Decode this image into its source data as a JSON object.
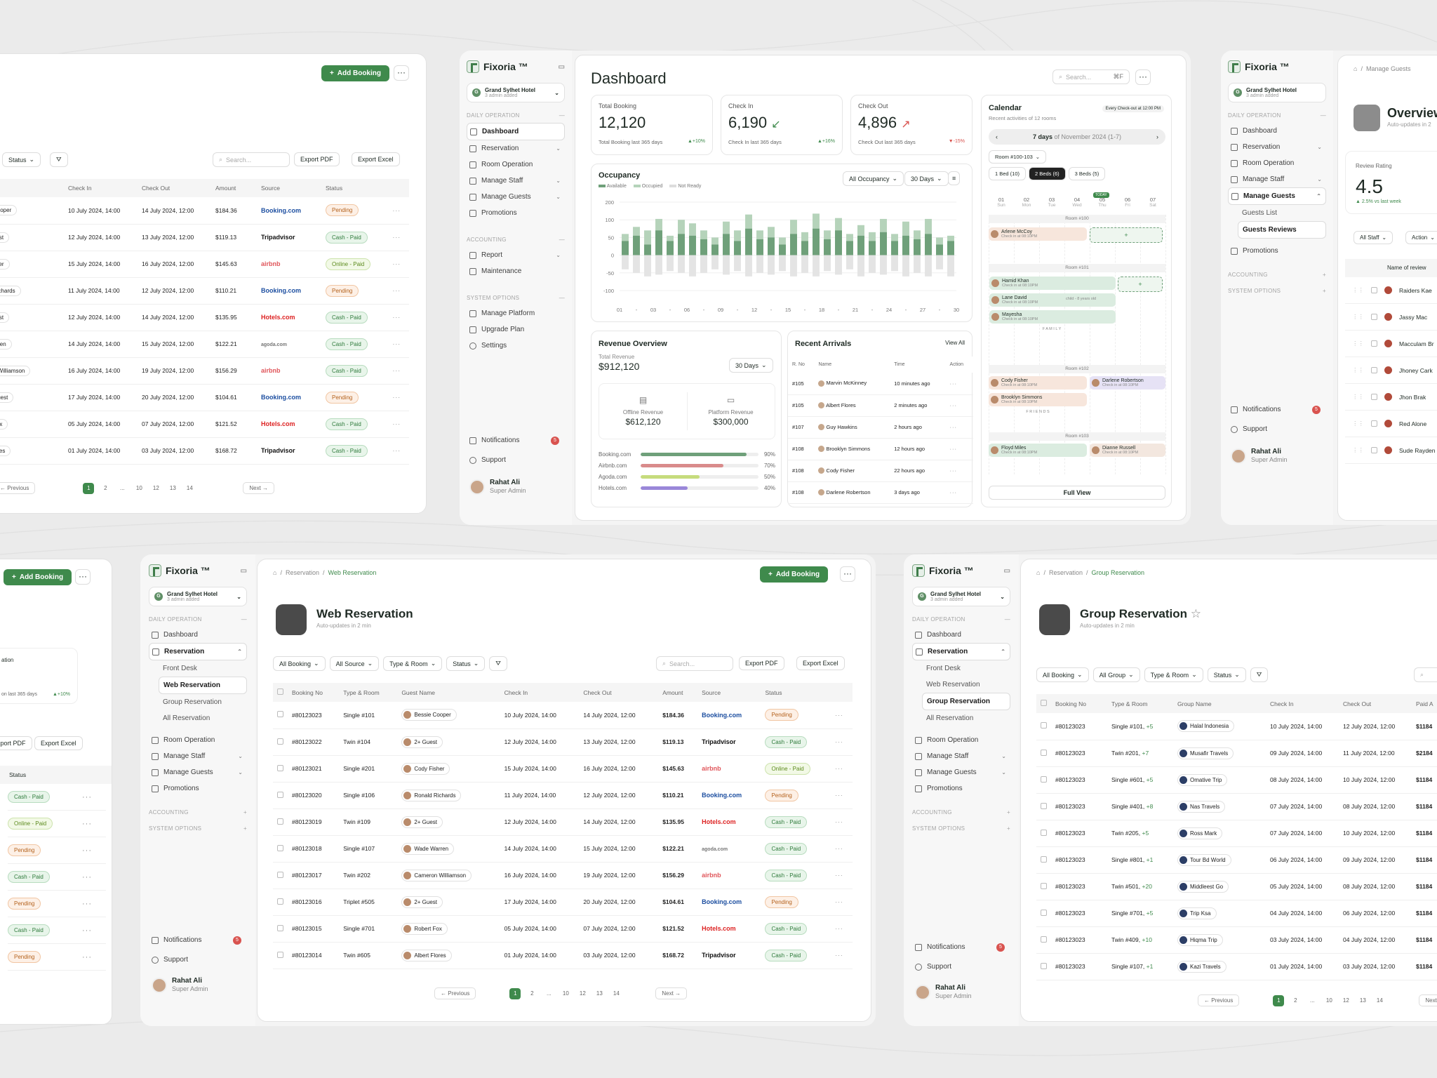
{
  "brand": "Fixoria ™",
  "hotel": {
    "name": "Grand Sylhet Hotel",
    "sub": "3 admin added",
    "initial": "G"
  },
  "sidebar": {
    "sec_daily": "DAILY OPERATION",
    "sec_acc": "ACCOUNTING",
    "sec_sys": "SYSTEM OPTIONS",
    "dashboard": "Dashboard",
    "reservation": "Reservation",
    "room_op": "Room Operation",
    "staff": "Manage Staff",
    "guests": "Manage Guests",
    "promotions": "Promotions",
    "report": "Report",
    "maintenance": "Maintenance",
    "platform": "Manage Platform",
    "upgrade": "Upgrade Plan",
    "settings": "Settings",
    "front_desk": "Front Desk",
    "web_res": "Web Reservation",
    "group_res": "Group Reservation",
    "all_res": "All Reservation",
    "guests_list": "Guests List",
    "guests_reviews": "Guests Reviews",
    "notifications": "Notifications",
    "notif_count": "5",
    "support": "Support"
  },
  "user": {
    "name": "Rahat Ali",
    "role": "Super Admin"
  },
  "common": {
    "add_booking": "Add Booking",
    "export_pdf": "Export PDF",
    "export_excel": "Export Excel",
    "search": "Search...",
    "status": "Status",
    "previous": "Previous",
    "next": "Next",
    "dots": "···"
  },
  "dashboard": {
    "title": "Dashboard",
    "search_kbd": "⌘F",
    "total": {
      "label": "Total Booking",
      "value": "12,120",
      "foot": "Total Booking last 365 days",
      "delta": "+10%"
    },
    "checkin": {
      "label": "Check In",
      "value": "6,190",
      "foot": "Check In last 365 days",
      "delta": "+16%"
    },
    "checkout": {
      "label": "Check Out",
      "value": "4,896",
      "foot": "Check Out last 365 days",
      "delta": "-15%"
    },
    "occupancy": {
      "title": "Occupancy",
      "filter1": "All Occupancy",
      "filter2": "30 Days",
      "legend": [
        "Available",
        "Occupied",
        "Not Ready"
      ]
    },
    "revenue": {
      "title": "Revenue Overview",
      "total_label": "Total Revenue",
      "total": "$912,120",
      "range": "30 Days",
      "offline_label": "Offline Revenue",
      "offline": "$612,120",
      "platform_label": "Platform Revenue",
      "platform": "$300,000",
      "sources": [
        {
          "name": "Booking.com",
          "pct": "90%",
          "v": 0.9,
          "c": "#6fa07a"
        },
        {
          "name": "Airbnb.com",
          "pct": "70%",
          "v": 0.7,
          "c": "#d98b8b"
        },
        {
          "name": "Agoda.com",
          "pct": "50%",
          "v": 0.5,
          "c": "#c6dc7d"
        },
        {
          "name": "Hotels.com",
          "pct": "40%",
          "v": 0.4,
          "c": "#9a87d9"
        }
      ]
    },
    "arrivals": {
      "title": "Recent Arrivals",
      "view_all": "View All",
      "cols": [
        "R. No",
        "Name",
        "Time",
        "Action"
      ],
      "rows": [
        {
          "r": "#105",
          "n": "Marvin McKinney",
          "t": "10 minutes ago"
        },
        {
          "r": "#105",
          "n": "Albert Flores",
          "t": "2 minutes ago"
        },
        {
          "r": "#107",
          "n": "Guy Hawkins",
          "t": "2 hours ago"
        },
        {
          "r": "#108",
          "n": "Brooklyn Simmons",
          "t": "12 hours ago"
        },
        {
          "r": "#108",
          "n": "Cody Fisher",
          "t": "22 hours ago"
        },
        {
          "r": "#108",
          "n": "Darlene Robertson",
          "t": "3 days ago"
        }
      ]
    },
    "calendar": {
      "title": "Calendar",
      "sub": "Recent activities of 12 rooms",
      "note": "Every Check-out at 12:00 PM",
      "range_bold": "7 days",
      "range_rest": "of November 2024 (1-7)",
      "room_filter": "Room #100-103",
      "tabs": [
        "1 Bed (10)",
        "2 Beds (6)",
        "3 Beds (5)"
      ],
      "today": "TODAY",
      "days": [
        {
          "n": "01",
          "d": "Sun"
        },
        {
          "n": "02",
          "d": "Mon"
        },
        {
          "n": "03",
          "d": "Tue"
        },
        {
          "n": "04",
          "d": "Wed"
        },
        {
          "n": "05",
          "d": "Thu"
        },
        {
          "n": "06",
          "d": "Fri"
        },
        {
          "n": "07",
          "d": "Sat"
        }
      ],
      "rooms": [
        "Room #100",
        "Room #101",
        "Room #102",
        "Room #103"
      ],
      "events": [
        "Arlene McCoy",
        "Hamid Khan",
        "Lane David",
        "Mayesha",
        "Cody Fisher",
        "Brooklyn Simmons",
        "Darlene Robertson",
        "Floyd Miles",
        "Dianne Russell"
      ],
      "ev_sub": "Check in at 08:10PM, Out at 11:30 PM",
      "ev_sub2": "Check in at 08:10PM",
      "child": "child - 8 years old",
      "family": "F A M I L Y",
      "friends": "F R I E N D S",
      "full_view": "Full View"
    }
  },
  "chart_data": {
    "type": "bar",
    "title": "Occupancy",
    "categories": [
      "01",
      "02",
      "03",
      "04",
      "05",
      "06",
      "07",
      "08",
      "09",
      "10",
      "11",
      "12",
      "13",
      "14",
      "15",
      "16",
      "17",
      "18",
      "19",
      "20",
      "21",
      "22",
      "23",
      "24",
      "25",
      "26",
      "27",
      "28",
      "29",
      "30"
    ],
    "x_tick_labels": [
      "01",
      "-",
      "03",
      "-",
      "06",
      "-",
      "09",
      "-",
      "12",
      "-",
      "15",
      "-",
      "18",
      "-",
      "21",
      "-",
      "24",
      "-",
      "27",
      "-",
      "30"
    ],
    "ylim": [
      -100,
      200
    ],
    "yticks": [
      200,
      100,
      50,
      0,
      -50,
      -100
    ],
    "series": [
      {
        "name": "Occupied",
        "values": [
          40,
          55,
          30,
          70,
          40,
          60,
          55,
          45,
          30,
          60,
          40,
          75,
          45,
          50,
          30,
          60,
          40,
          75,
          45,
          70,
          40,
          55,
          40,
          65,
          40,
          55,
          45,
          60,
          30,
          40
        ]
      },
      {
        "name": "Available",
        "values": [
          60,
          80,
          70,
          105,
          55,
          100,
          90,
          70,
          50,
          95,
          70,
          130,
          70,
          80,
          50,
          100,
          65,
          135,
          70,
          110,
          60,
          85,
          65,
          105,
          60,
          95,
          70,
          105,
          50,
          55
        ]
      },
      {
        "name": "Not Ready",
        "values": [
          -40,
          -50,
          -60,
          -55,
          -45,
          -50,
          -60,
          -50,
          -40,
          -55,
          -45,
          -60,
          -50,
          -55,
          -45,
          -60,
          -50,
          -60,
          -45,
          -55,
          -40,
          -60,
          -50,
          -55,
          -45,
          -60,
          -50,
          -60,
          -40,
          -60
        ]
      }
    ]
  },
  "reservations": {
    "cols": [
      "Booking No",
      "Type & Room",
      "Guest Name",
      "Check In",
      "Check Out",
      "Amount",
      "Source",
      "Status"
    ],
    "rows": [
      {
        "no": "#80123023",
        "room": "Single #101",
        "guest": "Bessie Cooper",
        "in": "10 July 2024, 14:00",
        "out": "14 July 2024, 12:00",
        "amt": "$184.36",
        "src": "Booking.com",
        "sc": "bk",
        "st": "Pending",
        "stc": "pending"
      },
      {
        "no": "#80123022",
        "room": "Twin #104",
        "guest": "2+ Guest",
        "in": "12 July 2024, 14:00",
        "out": "13 July 2024, 12:00",
        "amt": "$119.13",
        "src": "Tripadvisor",
        "sc": "ta",
        "st": "Cash - Paid",
        "stc": "cash"
      },
      {
        "no": "#80123021",
        "room": "Single #201",
        "guest": "Cody Fisher",
        "in": "15 July 2024, 14:00",
        "out": "16 July 2024, 12:00",
        "amt": "$145.63",
        "src": "airbnb",
        "sc": "ab",
        "st": "Online - Paid",
        "stc": "online"
      },
      {
        "no": "#80123020",
        "room": "Single #106",
        "guest": "Ronald Richards",
        "in": "11 July 2024, 14:00",
        "out": "12 July 2024, 12:00",
        "amt": "$110.21",
        "src": "Booking.com",
        "sc": "bk",
        "st": "Pending",
        "stc": "pending"
      },
      {
        "no": "#80123019",
        "room": "Twin #109",
        "guest": "2+ Guest",
        "in": "12 July 2024, 14:00",
        "out": "14 July 2024, 12:00",
        "amt": "$135.95",
        "src": "Hotels.com",
        "sc": "ho",
        "st": "Cash - Paid",
        "stc": "cash"
      },
      {
        "no": "#80123018",
        "room": "Single #107",
        "guest": "Wade Warren",
        "in": "14 July 2024, 14:00",
        "out": "15 July 2024, 12:00",
        "amt": "$122.21",
        "src": "agoda.com",
        "sc": "ag",
        "st": "Cash - Paid",
        "stc": "cash"
      },
      {
        "no": "#80123017",
        "room": "Twin #202",
        "guest": "Cameron Williamson",
        "in": "16 July 2024, 14:00",
        "out": "19 July 2024, 12:00",
        "amt": "$156.29",
        "src": "airbnb",
        "sc": "ab",
        "st": "Cash - Paid",
        "stc": "cash"
      },
      {
        "no": "#80123016",
        "room": "Triplet #505",
        "guest": "2+ Guest",
        "in": "17 July 2024, 14:00",
        "out": "20 July 2024, 12:00",
        "amt": "$104.61",
        "src": "Booking.com",
        "sc": "bk",
        "st": "Pending",
        "stc": "pending"
      },
      {
        "no": "#80123015",
        "room": "Single #701",
        "guest": "Robert Fox",
        "in": "05 July 2024, 14:00",
        "out": "07 July 2024, 12:00",
        "amt": "$121.52",
        "src": "Hotels.com",
        "sc": "ho",
        "st": "Cash - Paid",
        "stc": "cash"
      },
      {
        "no": "#80123014",
        "room": "Twin #605",
        "guest": "Albert Flores",
        "in": "01 July 2024, 14:00",
        "out": "03 July 2024, 12:00",
        "amt": "$168.72",
        "src": "Tripadvisor",
        "sc": "ta",
        "st": "Cash - Paid",
        "stc": "cash"
      }
    ],
    "left_guests": [
      "Cooper",
      "uest",
      "sher",
      "Richards",
      "uest",
      "arren",
      "n Williamson",
      "Guest",
      "Fox",
      "lores"
    ],
    "pages": [
      "1",
      "2",
      "...",
      "10",
      "12",
      "13",
      "14"
    ]
  },
  "web": {
    "crumb1": "Reservation",
    "crumb2": "Web Reservation",
    "title": "Web Reservation",
    "sub": "Auto-updates in 2 min",
    "filters": [
      "All Booking",
      "All Source",
      "Type & Room",
      "Status"
    ]
  },
  "group": {
    "crumb1": "Reservation",
    "crumb2": "Group Reservation",
    "title": "Group Reservation",
    "sub": "Auto-updates in 2 min",
    "filters": [
      "All Booking",
      "All Group",
      "Type & Room",
      "Status"
    ],
    "cols": [
      "Booking No",
      "Type & Room",
      "Group Name",
      "Check In",
      "Check Out",
      "Paid A"
    ],
    "rows": [
      {
        "no": "#80123023",
        "room": "Single #101,",
        "plus": "+5",
        "g": "Halal Indonesia",
        "in": "10 July 2024, 14:00",
        "out": "12 July 2024, 12:00",
        "amt": "$1184"
      },
      {
        "no": "#80123023",
        "room": "Twin #201,",
        "plus": "+7",
        "g": "Musafir Travels",
        "in": "09 July 2024, 14:00",
        "out": "11 July 2024, 12:00",
        "amt": "$2184"
      },
      {
        "no": "#80123023",
        "room": "Single #601,",
        "plus": "+5",
        "g": "Omative Trip",
        "in": "08 July 2024, 14:00",
        "out": "10 July 2024, 12:00",
        "amt": "$1184"
      },
      {
        "no": "#80123023",
        "room": "Single #401,",
        "plus": "+8",
        "g": "Nas Travels",
        "in": "07 July 2024, 14:00",
        "out": "08 July 2024, 12:00",
        "amt": "$1184"
      },
      {
        "no": "#80123023",
        "room": "Twin #205,",
        "plus": "+5",
        "g": "Ross Mark",
        "in": "07 July 2024, 14:00",
        "out": "10 July 2024, 12:00",
        "amt": "$1184"
      },
      {
        "no": "#80123023",
        "room": "Single #801,",
        "plus": "+1",
        "g": "Tour Bd World",
        "in": "06 July 2024, 14:00",
        "out": "09 July 2024, 12:00",
        "amt": "$1184"
      },
      {
        "no": "#80123023",
        "room": "Twin #501,",
        "plus": "+20",
        "g": "Middleest Go",
        "in": "05 July 2024, 14:00",
        "out": "08 July 2024, 12:00",
        "amt": "$1184"
      },
      {
        "no": "#80123023",
        "room": "Single #701,",
        "plus": "+5",
        "g": "Trip Ksa",
        "in": "04 July 2024, 14:00",
        "out": "06 July 2024, 12:00",
        "amt": "$1184"
      },
      {
        "no": "#80123023",
        "room": "Twin #409,",
        "plus": "+10",
        "g": "Hiqma Trip",
        "in": "03 July 2024, 14:00",
        "out": "04 July 2024, 12:00",
        "amt": "$1184"
      },
      {
        "no": "#80123023",
        "room": "Single #107,",
        "plus": "+1",
        "g": "Kazi Travels",
        "in": "01 July 2024, 14:00",
        "out": "03 July 2024, 12:00",
        "amt": "$1184"
      }
    ]
  },
  "guests_page": {
    "crumb": "Manage Guests",
    "title": "Overview",
    "sub": "Auto-updates in 2",
    "rating_label": "Review Rating",
    "rating": "4.5",
    "rating_delta": "▲ 2.5% vs last week",
    "f1": "All Staff",
    "f2": "Action",
    "col": "Name of review",
    "names": [
      "Raiders Kae",
      "Jassy Mac",
      "Macculam Br",
      "Jhoney Cark",
      "Jhon Brak",
      "Red Alone",
      "Sude Rayden"
    ]
  },
  "left_bottom": {
    "title": "ation",
    "foot": "on last 365 days",
    "delta": "+10%",
    "statuses": [
      "Cash - Paid",
      "Online - Paid",
      "Pending",
      "Cash - Paid",
      "Pending",
      "Cash - Paid",
      "Pending"
    ],
    "statusc": [
      "cash",
      "online",
      "pending",
      "cash",
      "pending",
      "cash",
      "pending"
    ]
  }
}
